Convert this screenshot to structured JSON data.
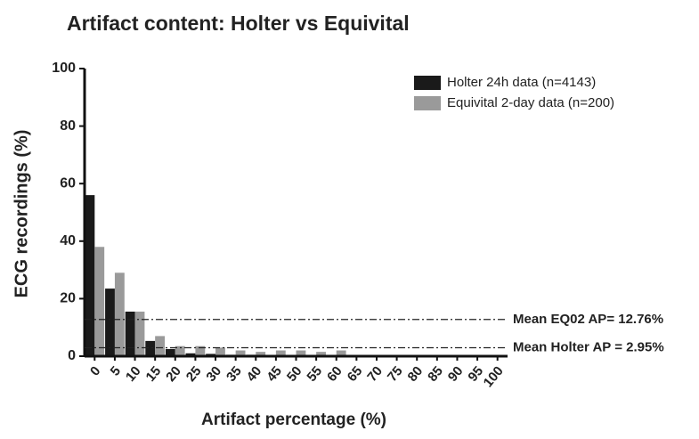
{
  "chart_data": {
    "type": "bar",
    "title": "Artifact content: Holter vs Equivital",
    "x_label": "Artifact percentage (%)",
    "y_label": "ECG recordings (%)",
    "categories": [
      "0",
      "5",
      "10",
      "15",
      "20",
      "25",
      "30",
      "35",
      "40",
      "45",
      "50",
      "55",
      "60",
      "65",
      "70",
      "75",
      "80",
      "85",
      "90",
      "95",
      "100"
    ],
    "series": [
      {
        "name": "Holter 24h data (n=4143)",
        "color": "#1a1a1a",
        "values": [
          56,
          23.5,
          15.5,
          5.3,
          2.5,
          1,
          0.8,
          0.5,
          0.5,
          0.4,
          0.3,
          0.3,
          0.3,
          0.2,
          0.2,
          0.1,
          0.1,
          0.1,
          0.1,
          0.1,
          0.1
        ]
      },
      {
        "name": "Equivital 2-day data  (n=200)",
        "color": "#9a9a9a",
        "values": [
          38,
          29,
          15.5,
          7,
          3.5,
          3.5,
          3,
          2,
          1.5,
          2,
          2,
          1.5,
          2,
          0,
          0,
          0,
          0,
          0,
          0,
          0,
          0
        ]
      }
    ],
    "reference_lines": [
      {
        "value": 12.76,
        "label": "Mean EQ02 AP= 12.76%"
      },
      {
        "value": 2.95,
        "label": "Mean Holter AP = 2.95%"
      }
    ],
    "ylim": [
      0,
      100
    ],
    "yticks": [
      0,
      20,
      40,
      60,
      80,
      100
    ],
    "legend": "top-right"
  }
}
